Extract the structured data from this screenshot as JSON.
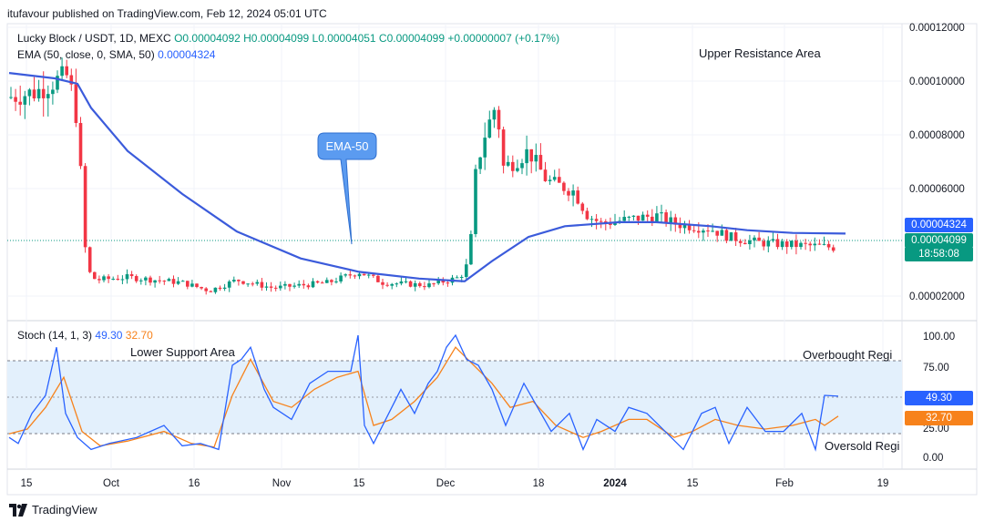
{
  "header": {
    "published": "itufavour published on TradingView.com, Feb 12, 2024 05:01 UTC",
    "symbol": "Lucky Block / USDT, 1D, MEXC",
    "ohlc": "O0.00004092 H0.00004099 L0.00004051 C0.00004099 +0.00000007 (+0.17%)",
    "ema_label": "EMA (50, close, 0, SMA, 50)",
    "ema_value": "0.00004324",
    "stoch_label": "Stoch (14, 1, 3)",
    "stoch_k": "49.30",
    "stoch_d": "32.70"
  },
  "annotations": {
    "upper_resistance": "Upper Resistance Area",
    "lower_support": "Lower Support Area",
    "overbought": "Overbought Regi",
    "oversold": "Oversold Regi",
    "ema_callout": "EMA-50"
  },
  "price_tags": {
    "ema": "0.00004324",
    "last": "0.00004099",
    "countdown": "18:58:08"
  },
  "watermark": "TradingView",
  "colors": {
    "up": "#089981",
    "down": "#f23645",
    "ema": "#3b5bdb",
    "stoch_k": "#2962ff",
    "stoch_d": "#f7821b",
    "band": "#e3f0fc",
    "callout": "#5b9bf0"
  },
  "chart_data": [
    {
      "type": "candlestick",
      "title": "Lucky Block / USDT, 1D, MEXC",
      "y_axis_ticks": [
        "0.00012000",
        "0.00010000",
        "0.00008000",
        "0.00006000",
        "0.00002000"
      ],
      "ylim": [
        1.4e-05,
        0.000122
      ],
      "x_tick_labels": [
        "15",
        "Oct",
        "16",
        "Nov",
        "15",
        "Dec",
        "18",
        "2024",
        "15",
        "Feb",
        "19"
      ],
      "overlay": {
        "name": "EMA 50",
        "last": 4.324e-05
      },
      "last_close": 4.099e-05
    },
    {
      "type": "line",
      "title": "Stoch (14, 1, 3)",
      "y_axis_ticks": [
        "100.00",
        "75.00",
        "25.00",
        "0.00"
      ],
      "ylim": [
        -5,
        105
      ],
      "bands": {
        "overbought": 80,
        "middle": 50,
        "oversold": 20
      },
      "series": [
        {
          "name": "%K",
          "last": 49.3
        },
        {
          "name": "%D",
          "last": 32.7
        }
      ]
    }
  ]
}
